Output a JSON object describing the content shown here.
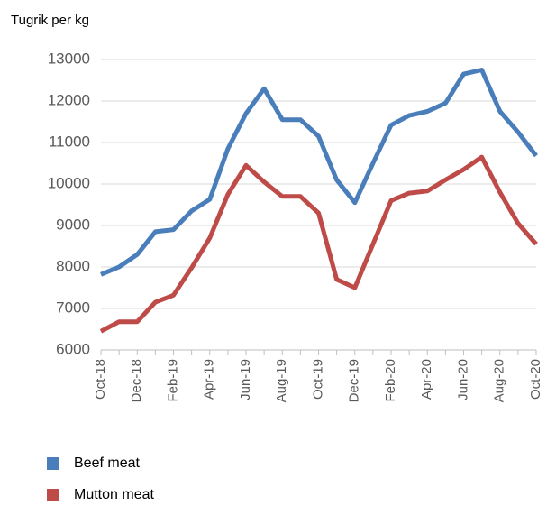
{
  "chart_data": {
    "type": "line",
    "unit_label": "Tugrik per kg",
    "x": [
      "Oct-18",
      "Nov-18",
      "Dec-18",
      "Jan-19",
      "Feb-19",
      "Mar-19",
      "Apr-19",
      "May-19",
      "Jun-19",
      "Jul-19",
      "Aug-19",
      "Sep-19",
      "Oct-19",
      "Nov-19",
      "Dec-19",
      "Jan-20",
      "Feb-20",
      "Mar-20",
      "Apr-20",
      "May-20",
      "Jun-20",
      "Jul-20",
      "Aug-20",
      "Sep-20",
      "Oct-20"
    ],
    "xtick_labels": [
      "Oct-18",
      "Dec-18",
      "Feb-19",
      "Apr-19",
      "Jun-19",
      "Aug-19",
      "Oct-19",
      "Dec-19",
      "Feb-20",
      "Apr-20",
      "Jun-20",
      "Aug-20",
      "Oct-20"
    ],
    "ylim": [
      6000,
      13000
    ],
    "yticks": [
      6000,
      7000,
      8000,
      9000,
      10000,
      11000,
      12000,
      13000
    ],
    "grid": true,
    "legend_position": "bottom-left",
    "series": [
      {
        "name": "Beef meat",
        "color": "#4a7ebb",
        "values": [
          7820,
          8000,
          8300,
          8850,
          8900,
          9350,
          9630,
          10850,
          11700,
          12300,
          11550,
          11550,
          11150,
          10100,
          9550,
          10500,
          11420,
          11650,
          11750,
          11950,
          12650,
          12750,
          11750,
          11250,
          10680
        ]
      },
      {
        "name": "Mutton meat",
        "color": "#be4b48",
        "values": [
          6450,
          6680,
          6680,
          7150,
          7320,
          7980,
          8700,
          9750,
          10450,
          10050,
          9700,
          9700,
          9300,
          7700,
          7500,
          8550,
          9600,
          9780,
          9830,
          10100,
          10350,
          10650,
          9800,
          9050,
          8550
        ]
      }
    ]
  }
}
